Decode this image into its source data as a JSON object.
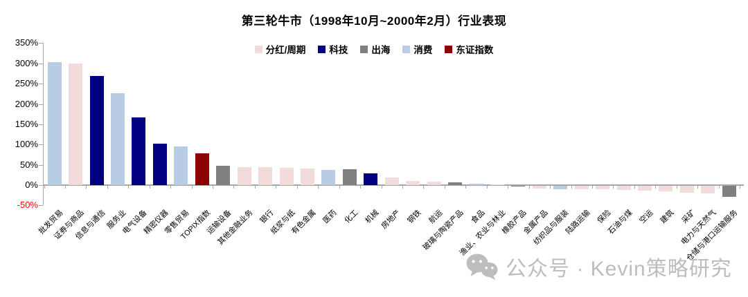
{
  "title": "第三轮牛市（1998年10月~2000年2月）行业表现",
  "watermark": {
    "icon": "wechat-icon",
    "text": "公众号 · Kevin策略研究"
  },
  "chart_data": {
    "type": "bar",
    "title": "第三轮牛市（1998年10月~2000年2月）行业表现",
    "legend_position": "top",
    "grid": false,
    "ylim": [
      -50,
      350
    ],
    "yticks": [
      350,
      300,
      250,
      200,
      150,
      100,
      50,
      0,
      -50
    ],
    "ytick_suffix": "%",
    "negative_tick_color": "#ff0000",
    "axis_color": "#a6a6a6",
    "groups": [
      {
        "name": "分红/周期",
        "color": "#f2dcdb"
      },
      {
        "name": "科技",
        "color": "#000080"
      },
      {
        "name": "出海",
        "color": "#808080"
      },
      {
        "name": "消费",
        "color": "#b8cce4"
      },
      {
        "name": "东证指数",
        "color": "#8b0000"
      }
    ],
    "bars": [
      {
        "label": "批发贸易",
        "group": "消费",
        "value": 303
      },
      {
        "label": "证券与商品",
        "group": "分红/周期",
        "value": 300
      },
      {
        "label": "信息与通信",
        "group": "科技",
        "value": 269
      },
      {
        "label": "服务业",
        "group": "消费",
        "value": 226
      },
      {
        "label": "电气设备",
        "group": "科技",
        "value": 166
      },
      {
        "label": "精密仪器",
        "group": "科技",
        "value": 102
      },
      {
        "label": "零售贸易",
        "group": "消费",
        "value": 96
      },
      {
        "label": "TOPIX指数",
        "group": "东证指数",
        "value": 78
      },
      {
        "label": "运输设备",
        "group": "出海",
        "value": 47
      },
      {
        "label": "其他金融业务",
        "group": "分红/周期",
        "value": 45
      },
      {
        "label": "银行",
        "group": "分红/周期",
        "value": 44
      },
      {
        "label": "纸浆与纸",
        "group": "分红/周期",
        "value": 42
      },
      {
        "label": "有色金属",
        "group": "分红/周期",
        "value": 41
      },
      {
        "label": "医药",
        "group": "消费",
        "value": 38
      },
      {
        "label": "化工",
        "group": "出海",
        "value": 40
      },
      {
        "label": "机械",
        "group": "科技",
        "value": 29
      },
      {
        "label": "房地产",
        "group": "分红/周期",
        "value": 19
      },
      {
        "label": "钢铁",
        "group": "分红/周期",
        "value": 11
      },
      {
        "label": "航运",
        "group": "分红/周期",
        "value": 9
      },
      {
        "label": "玻璃与陶瓷产品",
        "group": "出海",
        "value": 6
      },
      {
        "label": "食品",
        "group": "消费",
        "value": 3
      },
      {
        "label": "渔业、农业与林业",
        "group": "分红/周期",
        "value": 2
      },
      {
        "label": "橡胶产品",
        "group": "出海",
        "value": -1
      },
      {
        "label": "金属产品",
        "group": "分红/周期",
        "value": -6
      },
      {
        "label": "纺织品与服装",
        "group": "消费",
        "value": -8
      },
      {
        "label": "陆路运输",
        "group": "分红/周期",
        "value": -8
      },
      {
        "label": "保险",
        "group": "分红/周期",
        "value": -9
      },
      {
        "label": "石油与煤",
        "group": "分红/周期",
        "value": -10
      },
      {
        "label": "空运",
        "group": "分红/周期",
        "value": -12
      },
      {
        "label": "建筑",
        "group": "分红/周期",
        "value": -13
      },
      {
        "label": "采矿",
        "group": "分红/周期",
        "value": -17
      },
      {
        "label": "电力与天然气",
        "group": "分红/周期",
        "value": -18
      },
      {
        "label": "仓储与港口运输服务",
        "group": "出海",
        "value": -28
      }
    ]
  }
}
